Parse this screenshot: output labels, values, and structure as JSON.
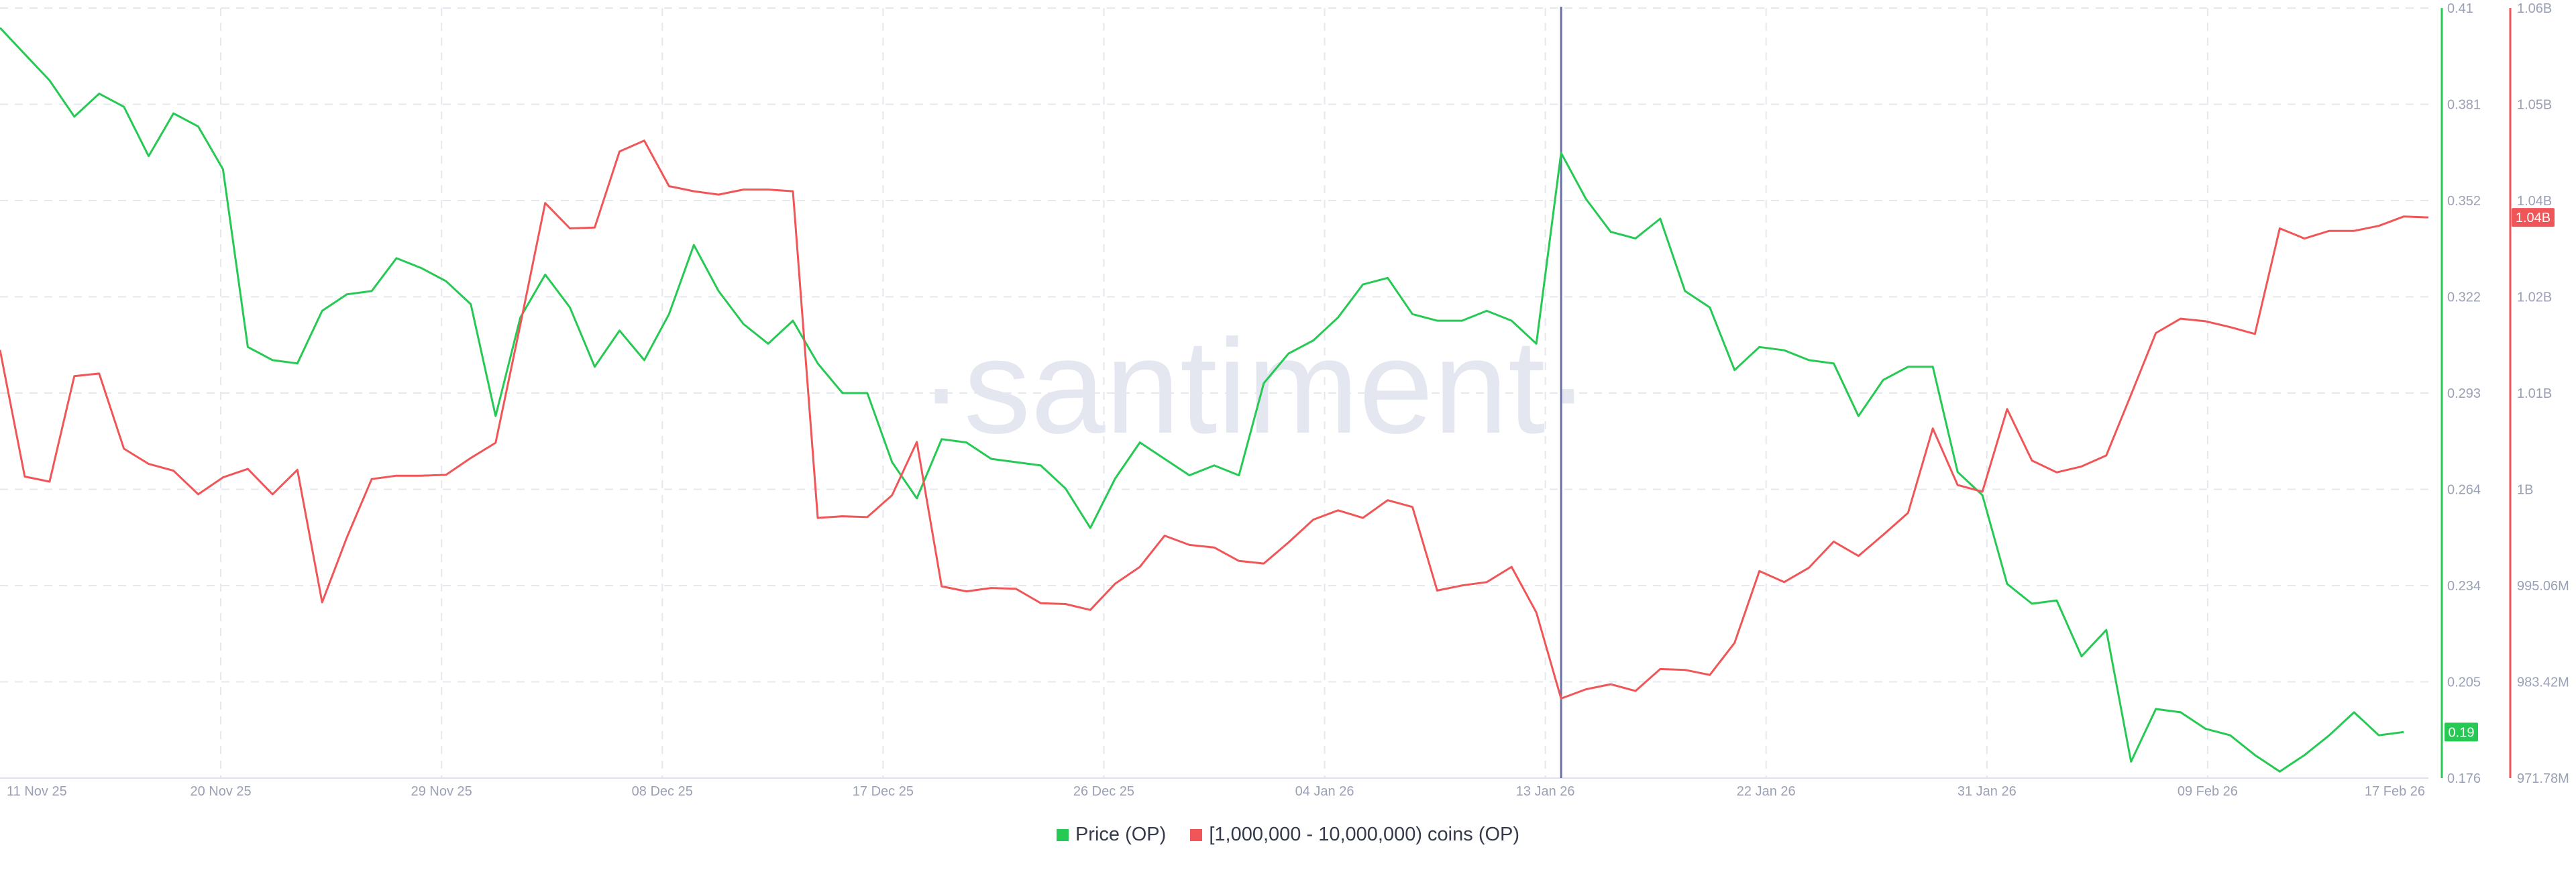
{
  "watermark": "·santiment·",
  "colors": {
    "price": "#26c953",
    "holders": "#f05658",
    "crosshair": "#6a6fa6",
    "grid": "#e6e8ef"
  },
  "legend": [
    {
      "label": "Price (OP)",
      "color": "#26c953"
    },
    {
      "label": "[1,000,000 - 10,000,000) coins (OP)",
      "color": "#f05658"
    }
  ],
  "chart_data": {
    "type": "line",
    "grid": true,
    "legend_position": "bottom",
    "x_tick_labels": [
      "11 Nov 25",
      "20 Nov 25",
      "29 Nov 25",
      "08 Dec 25",
      "17 Dec 25",
      "26 Dec 25",
      "04 Jan 26",
      "13 Jan 26",
      "22 Jan 26",
      "31 Jan 26",
      "09 Feb 26",
      "17 Feb 26"
    ],
    "x_range": [
      "2025-11-11",
      "2026-02-17"
    ],
    "highlighted_date": "2026-01-13",
    "price_axis": {
      "ticks": [
        "0.41",
        "0.381",
        "0.352",
        "0.322",
        "0.293",
        "0.264",
        "0.234",
        "0.205",
        "0.176"
      ],
      "range": [
        0.176,
        0.41
      ],
      "last_value_label": "0.19"
    },
    "holders_axis": {
      "ticks": [
        "1.06B",
        "1.05B",
        "1.04B",
        "1.02B",
        "1.01B",
        "1B",
        "995.06M",
        "983.42M",
        "971.78M"
      ],
      "range": [
        971.78,
        1063.0
      ],
      "unit": "M",
      "last_value_label": "1.04B"
    },
    "series": [
      {
        "name": "Price (OP)",
        "axis": "price",
        "points": [
          [
            "2025-11-11",
            0.404
          ],
          [
            "2025-11-12",
            0.396
          ],
          [
            "2025-11-13",
            0.388
          ],
          [
            "2025-11-14",
            0.377
          ],
          [
            "2025-11-15",
            0.384
          ],
          [
            "2025-11-16",
            0.38
          ],
          [
            "2025-11-17",
            0.365
          ],
          [
            "2025-11-18",
            0.378
          ],
          [
            "2025-11-19",
            0.374
          ],
          [
            "2025-11-20",
            0.361
          ],
          [
            "2025-11-21",
            0.307
          ],
          [
            "2025-11-22",
            0.303
          ],
          [
            "2025-11-23",
            0.302
          ],
          [
            "2025-11-24",
            0.318
          ],
          [
            "2025-11-25",
            0.323
          ],
          [
            "2025-11-26",
            0.324
          ],
          [
            "2025-11-27",
            0.334
          ],
          [
            "2025-11-28",
            0.331
          ],
          [
            "2025-11-29",
            0.327
          ],
          [
            "2025-11-30",
            0.32
          ],
          [
            "2025-12-01",
            0.286
          ],
          [
            "2025-12-02",
            0.316
          ],
          [
            "2025-12-03",
            0.329
          ],
          [
            "2025-12-04",
            0.319
          ],
          [
            "2025-12-05",
            0.301
          ],
          [
            "2025-12-06",
            0.312
          ],
          [
            "2025-12-07",
            0.303
          ],
          [
            "2025-12-08",
            0.317
          ],
          [
            "2025-12-09",
            0.338
          ],
          [
            "2025-12-10",
            0.324
          ],
          [
            "2025-12-11",
            0.314
          ],
          [
            "2025-12-12",
            0.308
          ],
          [
            "2025-12-13",
            0.315
          ],
          [
            "2025-12-14",
            0.302
          ],
          [
            "2025-12-15",
            0.293
          ],
          [
            "2025-12-16",
            0.293
          ],
          [
            "2025-12-17",
            0.272
          ],
          [
            "2025-12-18",
            0.261
          ],
          [
            "2025-12-19",
            0.279
          ],
          [
            "2025-12-20",
            0.278
          ],
          [
            "2025-12-21",
            0.273
          ],
          [
            "2025-12-22",
            0.272
          ],
          [
            "2025-12-23",
            0.271
          ],
          [
            "2025-12-24",
            0.264
          ],
          [
            "2025-12-25",
            0.252
          ],
          [
            "2025-12-26",
            0.267
          ],
          [
            "2025-12-27",
            0.278
          ],
          [
            "2025-12-28",
            0.273
          ],
          [
            "2025-12-29",
            0.268
          ],
          [
            "2025-12-30",
            0.271
          ],
          [
            "2025-12-31",
            0.268
          ],
          [
            "2026-01-01",
            0.296
          ],
          [
            "2026-01-02",
            0.305
          ],
          [
            "2026-01-03",
            0.309
          ],
          [
            "2026-01-04",
            0.316
          ],
          [
            "2026-01-05",
            0.326
          ],
          [
            "2026-01-06",
            0.328
          ],
          [
            "2026-01-07",
            0.317
          ],
          [
            "2026-01-08",
            0.315
          ],
          [
            "2026-01-09",
            0.315
          ],
          [
            "2026-01-10",
            0.318
          ],
          [
            "2026-01-11",
            0.315
          ],
          [
            "2026-01-12",
            0.308
          ],
          [
            "2026-01-13",
            0.366
          ],
          [
            "2026-01-14",
            0.352
          ],
          [
            "2026-01-15",
            0.342
          ],
          [
            "2026-01-16",
            0.34
          ],
          [
            "2026-01-17",
            0.346
          ],
          [
            "2026-01-18",
            0.324
          ],
          [
            "2026-01-19",
            0.319
          ],
          [
            "2026-01-20",
            0.3
          ],
          [
            "2026-01-21",
            0.307
          ],
          [
            "2026-01-22",
            0.306
          ],
          [
            "2026-01-23",
            0.303
          ],
          [
            "2026-01-24",
            0.302
          ],
          [
            "2026-01-25",
            0.286
          ],
          [
            "2026-01-26",
            0.297
          ],
          [
            "2026-01-27",
            0.301
          ],
          [
            "2026-01-28",
            0.301
          ],
          [
            "2026-01-29",
            0.269
          ],
          [
            "2026-01-30",
            0.262
          ],
          [
            "2026-01-31",
            0.235
          ],
          [
            "2026-02-01",
            0.229
          ],
          [
            "2026-02-02",
            0.23
          ],
          [
            "2026-02-03",
            0.213
          ],
          [
            "2026-02-04",
            0.221
          ],
          [
            "2026-02-05",
            0.181
          ],
          [
            "2026-02-06",
            0.197
          ],
          [
            "2026-02-07",
            0.196
          ],
          [
            "2026-02-08",
            0.191
          ],
          [
            "2026-02-09",
            0.189
          ],
          [
            "2026-02-10",
            0.183
          ],
          [
            "2026-02-11",
            0.178
          ],
          [
            "2026-02-12",
            0.183
          ],
          [
            "2026-02-13",
            0.189
          ],
          [
            "2026-02-14",
            0.196
          ],
          [
            "2026-02-15",
            0.189
          ],
          [
            "2026-02-16",
            0.19
          ]
        ]
      },
      {
        "name": "[1,000,000 - 10,000,000) coins (OP)",
        "axis": "holders",
        "points": [
          [
            "2025-11-11",
            1022.5
          ],
          [
            "2025-11-12",
            1007.5
          ],
          [
            "2025-11-13",
            1006.9
          ],
          [
            "2025-11-14",
            1019.4
          ],
          [
            "2025-11-15",
            1019.7
          ],
          [
            "2025-11-16",
            1010.8
          ],
          [
            "2025-11-17",
            1009.0
          ],
          [
            "2025-11-18",
            1008.2
          ],
          [
            "2025-11-19",
            1005.4
          ],
          [
            "2025-11-20",
            1007.4
          ],
          [
            "2025-11-21",
            1008.4
          ],
          [
            "2025-11-22",
            1005.4
          ],
          [
            "2025-11-23",
            1008.3
          ],
          [
            "2025-11-24",
            992.6
          ],
          [
            "2025-11-25",
            1000.3
          ],
          [
            "2025-11-26",
            1007.2
          ],
          [
            "2025-11-27",
            1007.6
          ],
          [
            "2025-11-28",
            1007.6
          ],
          [
            "2025-11-29",
            1007.7
          ],
          [
            "2025-11-30",
            1009.7
          ],
          [
            "2025-12-01",
            1011.5
          ],
          [
            "2025-12-02",
            1025.5
          ],
          [
            "2025-12-03",
            1039.9
          ],
          [
            "2025-12-04",
            1036.9
          ],
          [
            "2025-12-05",
            1037.0
          ],
          [
            "2025-12-06",
            1046.0
          ],
          [
            "2025-12-07",
            1047.3
          ],
          [
            "2025-12-08",
            1041.9
          ],
          [
            "2025-12-09",
            1041.3
          ],
          [
            "2025-12-10",
            1040.9
          ],
          [
            "2025-12-11",
            1041.5
          ],
          [
            "2025-12-12",
            1041.5
          ],
          [
            "2025-12-13",
            1041.3
          ],
          [
            "2025-12-14",
            1002.6
          ],
          [
            "2025-12-15",
            1002.8
          ],
          [
            "2025-12-16",
            1002.7
          ],
          [
            "2025-12-17",
            1005.3
          ],
          [
            "2025-12-18",
            1011.6
          ],
          [
            "2025-12-19",
            994.5
          ],
          [
            "2025-12-20",
            993.9
          ],
          [
            "2025-12-21",
            994.3
          ],
          [
            "2025-12-22",
            994.2
          ],
          [
            "2025-12-23",
            992.5
          ],
          [
            "2025-12-24",
            992.4
          ],
          [
            "2025-12-25",
            991.7
          ],
          [
            "2025-12-26",
            994.8
          ],
          [
            "2025-12-27",
            996.8
          ],
          [
            "2025-12-28",
            1000.5
          ],
          [
            "2025-12-29",
            999.4
          ],
          [
            "2025-12-30",
            999.1
          ],
          [
            "2025-12-31",
            997.5
          ],
          [
            "2026-01-01",
            997.2
          ],
          [
            "2026-01-02",
            999.7
          ],
          [
            "2026-01-03",
            1002.4
          ],
          [
            "2026-01-04",
            1003.5
          ],
          [
            "2026-01-05",
            1002.6
          ],
          [
            "2026-01-06",
            1004.7
          ],
          [
            "2026-01-07",
            1003.9
          ],
          [
            "2026-01-08",
            994.0
          ],
          [
            "2026-01-09",
            994.6
          ],
          [
            "2026-01-10",
            995.0
          ],
          [
            "2026-01-11",
            996.8
          ],
          [
            "2026-01-12",
            991.4
          ],
          [
            "2026-01-13",
            981.2
          ],
          [
            "2026-01-14",
            982.3
          ],
          [
            "2026-01-15",
            982.9
          ],
          [
            "2026-01-16",
            982.1
          ],
          [
            "2026-01-17",
            984.7
          ],
          [
            "2026-01-18",
            984.6
          ],
          [
            "2026-01-19",
            984.0
          ],
          [
            "2026-01-20",
            987.8
          ],
          [
            "2026-01-21",
            996.3
          ],
          [
            "2026-01-22",
            995.0
          ],
          [
            "2026-01-23",
            996.7
          ],
          [
            "2026-01-24",
            999.8
          ],
          [
            "2026-01-25",
            998.1
          ],
          [
            "2026-01-26",
            1000.6
          ],
          [
            "2026-01-27",
            1003.2
          ],
          [
            "2026-01-28",
            1013.2
          ],
          [
            "2026-01-29",
            1006.5
          ],
          [
            "2026-01-30",
            1005.7
          ],
          [
            "2026-01-31",
            1015.5
          ],
          [
            "2026-02-01",
            1009.4
          ],
          [
            "2026-02-02",
            1008.0
          ],
          [
            "2026-02-03",
            1008.7
          ],
          [
            "2026-02-04",
            1010.0
          ],
          [
            "2026-02-05",
            1017.2
          ],
          [
            "2026-02-06",
            1024.5
          ],
          [
            "2026-02-07",
            1026.2
          ],
          [
            "2026-02-08",
            1025.9
          ],
          [
            "2026-02-09",
            1025.2
          ],
          [
            "2026-02-10",
            1024.4
          ],
          [
            "2026-02-11",
            1036.9
          ],
          [
            "2026-02-12",
            1035.7
          ],
          [
            "2026-02-13",
            1036.6
          ],
          [
            "2026-02-14",
            1036.6
          ],
          [
            "2026-02-15",
            1037.2
          ],
          [
            "2026-02-16",
            1038.3
          ],
          [
            "2026-02-17",
            1038.2
          ]
        ]
      }
    ]
  }
}
